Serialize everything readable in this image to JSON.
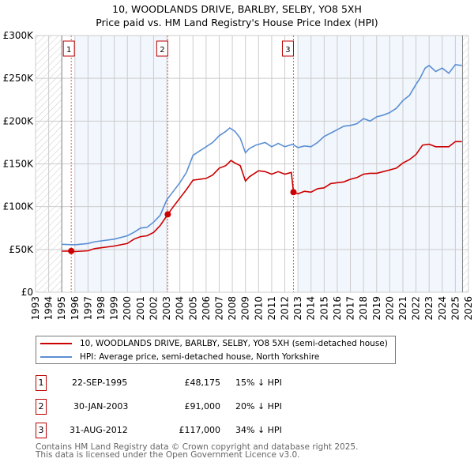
{
  "title": "10, WOODLANDS DRIVE, BARLBY, SELBY, YO8 5XH",
  "subtitle": "Price paid vs. HM Land Registry's House Price Index (HPI)",
  "chart_data": {
    "type": "line",
    "title": "10, WOODLANDS DRIVE, BARLBY, SELBY, YO8 5XH",
    "xlim": [
      1993,
      2026
    ],
    "ylim": [
      0,
      300000
    ],
    "y_ticks": [
      0,
      50000,
      100000,
      150000,
      200000,
      250000,
      300000
    ],
    "y_tick_labels": [
      "£0",
      "£50K",
      "£100K",
      "£150K",
      "£200K",
      "£250K",
      "£300K"
    ],
    "x_ticks": [
      "1993",
      "1994",
      "1995",
      "1996",
      "1997",
      "1998",
      "1999",
      "2000",
      "2001",
      "2002",
      "2003",
      "2004",
      "2005",
      "2006",
      "2007",
      "2008",
      "2009",
      "2010",
      "2011",
      "2012",
      "2013",
      "2014",
      "2015",
      "2016",
      "2017",
      "2018",
      "2019",
      "2020",
      "2021",
      "2022",
      "2023",
      "2024",
      "2025",
      "2026"
    ],
    "grid": true,
    "series": [
      {
        "name": "10, WOODLANDS DRIVE, BARLBY, SELBY, YO8 5XH (semi-detached house)",
        "color": "#cc0000",
        "x": [
          1995,
          1995.72,
          1996,
          1997,
          1997.5,
          1998,
          1999,
          2000,
          2000.5,
          2001,
          2001.5,
          2002,
          2002.5,
          2003.08,
          2003.5,
          2004,
          2004.5,
          2005,
          2006,
          2006.5,
          2007,
          2007.5,
          2007.9,
          2008.2,
          2008.6,
          2009,
          2009.3,
          2010,
          2010.5,
          2011,
          2011.5,
          2012,
          2012.5,
          2012.66,
          2013,
          2013.5,
          2014,
          2014.5,
          2015,
          2015.5,
          2016,
          2016.5,
          2017,
          2017.5,
          2018,
          2018.5,
          2019,
          2019.5,
          2020,
          2020.5,
          2021,
          2021.5,
          2022,
          2022.5,
          2023,
          2023.5,
          2024,
          2024.5,
          2025,
          2025.5
        ],
        "y": [
          48000,
          48175,
          47500,
          48500,
          51000,
          52000,
          54000,
          57000,
          62000,
          65000,
          66000,
          70000,
          78000,
          91000,
          100000,
          110000,
          120000,
          131000,
          133000,
          137000,
          145000,
          148000,
          154000,
          151000,
          148000,
          130000,
          135000,
          142000,
          141000,
          138000,
          141000,
          138000,
          140000,
          117000,
          115000,
          118000,
          117000,
          121000,
          122000,
          127000,
          128000,
          129000,
          132000,
          134000,
          138000,
          139000,
          139000,
          141000,
          143000,
          145000,
          151000,
          155000,
          161000,
          172000,
          173000,
          170000,
          170000,
          170000,
          176000,
          176000
        ]
      },
      {
        "name": "HPI: Average price, semi-detached house, North Yorkshire",
        "color": "#5b8fd4",
        "x": [
          1995,
          1996,
          1997,
          1997.5,
          1998,
          1999,
          2000,
          2000.5,
          2001,
          2001.5,
          2002,
          2002.5,
          2003,
          2003.5,
          2004,
          2004.5,
          2005,
          2005.5,
          2006,
          2006.5,
          2007,
          2007.5,
          2007.8,
          2008.2,
          2008.6,
          2009,
          2009.3,
          2009.8,
          2010.5,
          2011,
          2011.5,
          2012,
          2012.6,
          2013,
          2013.5,
          2014,
          2014.5,
          2015,
          2015.5,
          2016,
          2016.5,
          2017,
          2017.5,
          2018,
          2018.5,
          2019,
          2019.5,
          2020,
          2020.5,
          2021,
          2021.5,
          2022,
          2022.3,
          2022.7,
          2023,
          2023.5,
          2024,
          2024.5,
          2025,
          2025.5
        ],
        "y": [
          56000,
          55500,
          57000,
          59000,
          60000,
          62000,
          66000,
          70000,
          75000,
          76000,
          82000,
          90000,
          108000,
          118000,
          128000,
          140000,
          160000,
          165000,
          170000,
          175000,
          183000,
          188000,
          192000,
          188000,
          180000,
          163000,
          168000,
          172000,
          175000,
          170000,
          174000,
          170000,
          173000,
          169000,
          171000,
          170000,
          175000,
          182000,
          186000,
          190000,
          194000,
          195000,
          197000,
          203000,
          200000,
          205000,
          207000,
          210000,
          215000,
          224000,
          230000,
          243000,
          250000,
          262000,
          265000,
          258000,
          262000,
          256000,
          266000,
          265000
        ]
      }
    ],
    "sales": [
      {
        "label": "1",
        "date": "22-SEP-1995",
        "x": 1995.72,
        "price": "£48,175",
        "price_value": 48175,
        "hpi": "15% ↓ HPI"
      },
      {
        "label": "2",
        "date": "30-JAN-2003",
        "x": 2003.08,
        "price": "£91,000",
        "price_value": 91000,
        "hpi": "20% ↓ HPI"
      },
      {
        "label": "3",
        "date": "31-AUG-2012",
        "x": 2012.66,
        "price": "£117,000",
        "price_value": 117000,
        "hpi": "34% ↓ HPI"
      }
    ],
    "legend_position": "below"
  },
  "legend": {
    "property": "10, WOODLANDS DRIVE, BARLBY, SELBY, YO8 5XH (semi-detached house)",
    "hpi": "HPI: Average price, semi-detached house, North Yorkshire"
  },
  "footer": {
    "line1": "Contains HM Land Registry data © Crown copyright and database right 2025.",
    "line2": "This data is licensed under the Open Government Licence v3.0."
  }
}
